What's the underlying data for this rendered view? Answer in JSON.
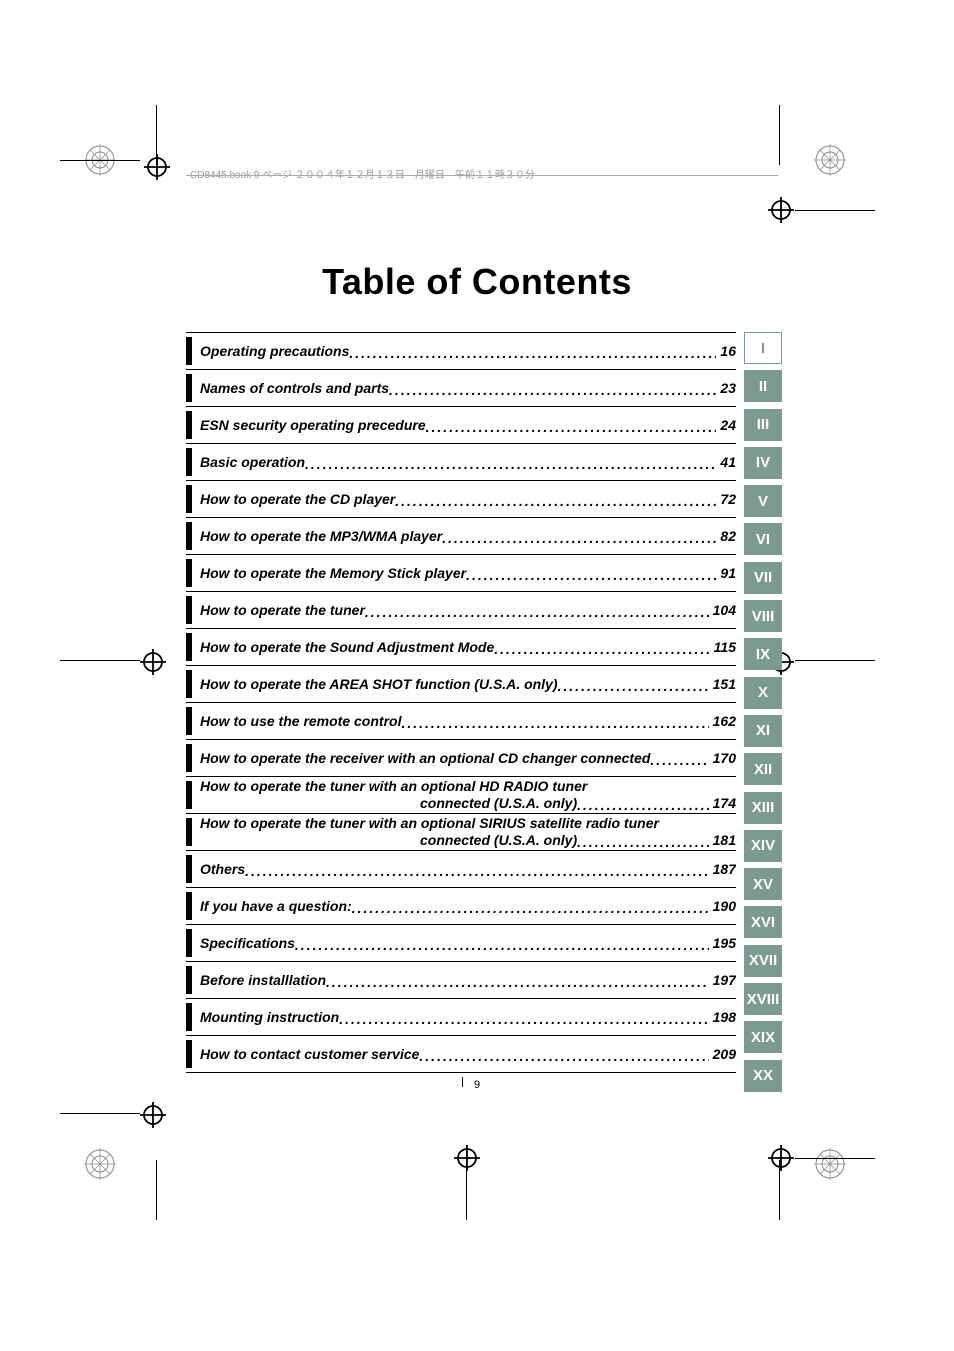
{
  "header": {
    "text": "CD8445.book  9 ページ  ２００４年１２月１３日　月曜日　午前１１時３０分"
  },
  "title": "Table of Contents",
  "page_number": "9",
  "tab_color": "#7a9b8e",
  "toc": [
    {
      "label": "Operating precautions",
      "page": "16",
      "type": "single"
    },
    {
      "label": "Names of controls and parts",
      "page": "23",
      "type": "single"
    },
    {
      "label": "ESN security operating precedure",
      "page": "24",
      "type": "single"
    },
    {
      "label": "Basic operation",
      "page": "41",
      "type": "single"
    },
    {
      "label": "How to operate the CD player",
      "page": "72",
      "type": "single"
    },
    {
      "label": "How to operate the MP3/WMA player",
      "page": "82",
      "type": "single"
    },
    {
      "label": "How to operate the Memory Stick player",
      "page": "91",
      "type": "single"
    },
    {
      "label": "How to operate the tuner",
      "page": "104",
      "type": "single"
    },
    {
      "label": "How to operate the Sound Adjustment Mode",
      "page": "115",
      "type": "single"
    },
    {
      "label": "How to operate the AREA SHOT function (U.S.A. only)",
      "page": "151",
      "type": "single"
    },
    {
      "label": "How to use the remote control",
      "page": "162",
      "type": "single"
    },
    {
      "label": "How to operate the receiver with an optional CD changer connected",
      "page": "170",
      "type": "single"
    },
    {
      "label": "How to operate the tuner with an optional HD RADIO tuner",
      "label2_prefix": "connected (U.S.A. only)",
      "page": "174",
      "type": "multi"
    },
    {
      "label": "How to operate the tuner with an optional SIRIUS satellite radio tuner",
      "label2_prefix": "connected (U.S.A. only)",
      "page": "181",
      "type": "multi"
    },
    {
      "label": "Others",
      "page": "187",
      "type": "single"
    },
    {
      "label": "If you have a question:",
      "page": "190",
      "type": "single"
    },
    {
      "label": "Specifications",
      "page": "195",
      "type": "single"
    },
    {
      "label": "Before installlation",
      "page": "197",
      "type": "single"
    },
    {
      "label": "Mounting instruction",
      "page": "198",
      "type": "single"
    },
    {
      "label": "How to contact customer service",
      "page": "209",
      "type": "single"
    }
  ],
  "tabs": [
    {
      "numeral": "I",
      "style": "outline"
    },
    {
      "numeral": "II",
      "style": "filled"
    },
    {
      "numeral": "III",
      "style": "filled"
    },
    {
      "numeral": "IV",
      "style": "filled"
    },
    {
      "numeral": "V",
      "style": "filled"
    },
    {
      "numeral": "VI",
      "style": "filled"
    },
    {
      "numeral": "VII",
      "style": "filled"
    },
    {
      "numeral": "VIII",
      "style": "filled"
    },
    {
      "numeral": "IX",
      "style": "filled"
    },
    {
      "numeral": "X",
      "style": "filled"
    },
    {
      "numeral": "XI",
      "style": "filled"
    },
    {
      "numeral": "XII",
      "style": "filled"
    },
    {
      "numeral": "XIII",
      "style": "filled"
    },
    {
      "numeral": "XIV",
      "style": "filled"
    },
    {
      "numeral": "XV",
      "style": "filled"
    },
    {
      "numeral": "XVI",
      "style": "filled"
    },
    {
      "numeral": "XVII",
      "style": "filled"
    },
    {
      "numeral": "XVIII",
      "style": "filled"
    },
    {
      "numeral": "XIX",
      "style": "filled"
    },
    {
      "numeral": "XX",
      "style": "filled"
    }
  ]
}
